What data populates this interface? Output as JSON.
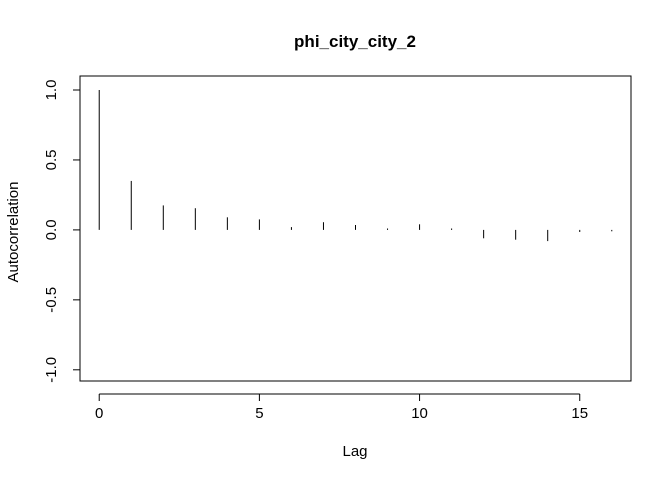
{
  "chart_data": {
    "type": "bar",
    "title": "phi_city_city_2",
    "xlabel": "Lag",
    "ylabel": "Autocorrelation",
    "x": [
      0,
      1,
      2,
      3,
      4,
      5,
      6,
      7,
      8,
      9,
      10,
      11,
      12,
      13,
      14,
      15,
      16
    ],
    "values": [
      1.0,
      0.35,
      0.175,
      0.155,
      0.09,
      0.075,
      0.02,
      0.055,
      0.035,
      0.01,
      0.04,
      0.01,
      -0.06,
      -0.07,
      -0.08,
      -0.015,
      -0.01
    ],
    "xlim": [
      -0.6,
      16.6
    ],
    "ylim": [
      -1.08,
      1.1
    ],
    "xticks": [
      0,
      5,
      10,
      15
    ],
    "xtick_labels": [
      "0",
      "5",
      "10",
      "15"
    ],
    "yticks": [
      -1.0,
      -0.5,
      0.0,
      0.5,
      1.0
    ],
    "ytick_labels": [
      "-1.0",
      "-0.5",
      "0.0",
      "0.5",
      "1.0"
    ],
    "grid": false,
    "legend": "none",
    "colors": {
      "lines": "#000000",
      "background": "#ffffff"
    }
  }
}
